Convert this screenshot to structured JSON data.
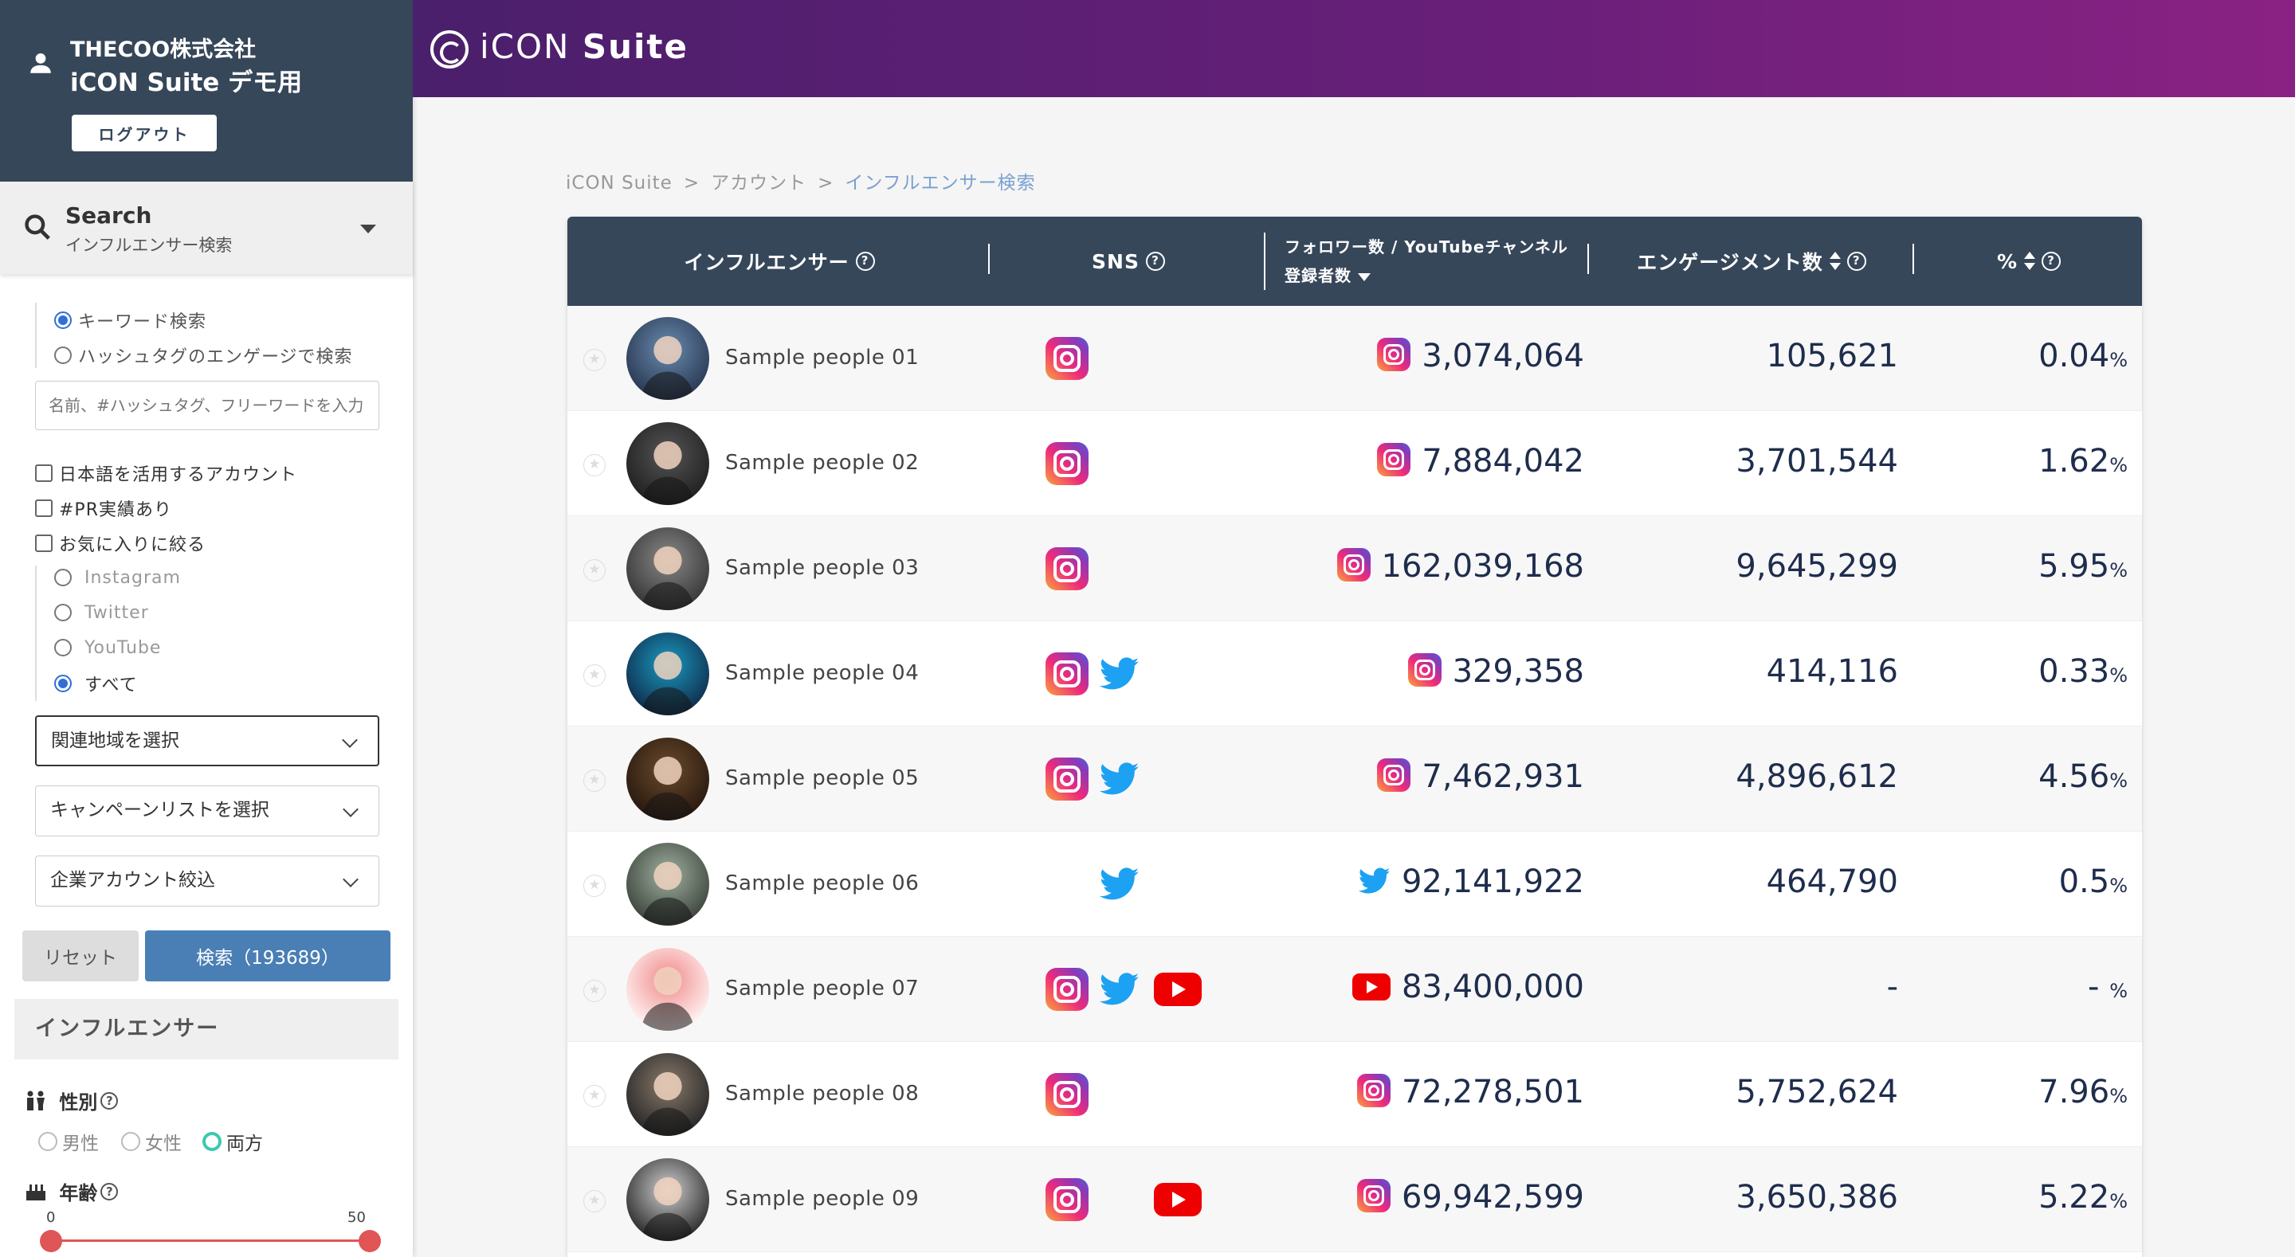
{
  "account": {
    "company": "THECOO株式会社",
    "name": "iCON Suite デモ用",
    "logout": "ログアウト"
  },
  "search": {
    "title": "Search",
    "subtitle": "インフルエンサー検索",
    "mode_keyword": "キーワード検索",
    "mode_hashtag": "ハッシュタグのエンゲージで検索",
    "placeholder": "名前、#ハッシュタグ、フリーワードを入力",
    "chk_japanese": "日本語を活用するアカウント",
    "chk_pr": "#PR実績あり",
    "chk_fav": "お気に入りに絞る",
    "sns_instagram": "Instagram",
    "sns_twitter": "Twitter",
    "sns_youtube": "YouTube",
    "sns_all": "すべて",
    "select_region": "関連地域を選択",
    "select_campaign": "キャンペーンリストを選択",
    "select_company": "企業アカウント絞込",
    "reset": "リセット",
    "search_btn": "検索（193689）"
  },
  "influencer": {
    "heading": "インフルエンサー",
    "gender_label": "性別",
    "gender_male": "男性",
    "gender_female": "女性",
    "gender_both": "両方",
    "age_label": "年齢",
    "age_min": "0",
    "age_max": "50"
  },
  "brand": {
    "icon_text": "iCON",
    "suite_text": "Suite"
  },
  "breadcrumb": {
    "home": "iCON Suite",
    "sep": ">",
    "account": "アカウント",
    "current": "インフルエンサー検索"
  },
  "table": {
    "headers": {
      "influencer": "インフルエンサー",
      "sns": "SNS",
      "followers_l1": "フォロワー数 / YouTubeチャンネル",
      "followers_l2": "登録者数",
      "engagement": "エンゲージメント数",
      "percent": "%"
    },
    "percent_unit": "%",
    "rows": [
      {
        "name": "Sample people 01",
        "sns": [
          "instagram"
        ],
        "primary": "instagram",
        "followers": "3,074,064",
        "engagement": "105,621",
        "rate": "0.04"
      },
      {
        "name": "Sample people 02",
        "sns": [
          "instagram"
        ],
        "primary": "instagram",
        "followers": "7,884,042",
        "engagement": "3,701,544",
        "rate": "1.62"
      },
      {
        "name": "Sample people 03",
        "sns": [
          "instagram"
        ],
        "primary": "instagram",
        "followers": "162,039,168",
        "engagement": "9,645,299",
        "rate": "5.95"
      },
      {
        "name": "Sample people 04",
        "sns": [
          "instagram",
          "twitter"
        ],
        "primary": "instagram",
        "followers": "329,358",
        "engagement": "414,116",
        "rate": "0.33"
      },
      {
        "name": "Sample people 05",
        "sns": [
          "instagram",
          "twitter"
        ],
        "primary": "instagram",
        "followers": "7,462,931",
        "engagement": "4,896,612",
        "rate": "4.56"
      },
      {
        "name": "Sample people 06",
        "sns": [
          "twitter"
        ],
        "primary": "twitter",
        "followers": "92,141,922",
        "engagement": "464,790",
        "rate": "0.5"
      },
      {
        "name": "Sample people 07",
        "sns": [
          "instagram",
          "twitter",
          "youtube"
        ],
        "primary": "youtube",
        "followers": "83,400,000",
        "engagement": "-",
        "rate": "- "
      },
      {
        "name": "Sample people 08",
        "sns": [
          "instagram"
        ],
        "primary": "instagram",
        "followers": "72,278,501",
        "engagement": "5,752,624",
        "rate": "7.96"
      },
      {
        "name": "Sample people 09",
        "sns": [
          "instagram",
          "youtube"
        ],
        "primary": "instagram",
        "followers": "69,942,599",
        "engagement": "3,650,386",
        "rate": "5.22"
      }
    ]
  },
  "colors": {
    "header_dark": "#37475a",
    "accent_blue": "#4a7fb5",
    "value_text": "#1f2d4d",
    "brand_purple": "#6a1f7a"
  }
}
